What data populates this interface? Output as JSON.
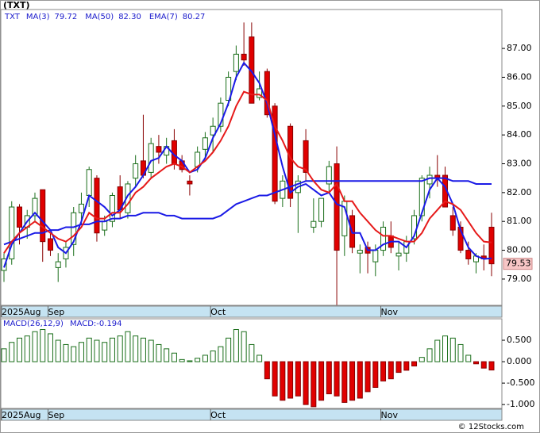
{
  "chart_data": [
    {
      "type": "candlestick",
      "title": "(TXT)",
      "symbol": "TXT",
      "categories": [
        "2025Aug",
        null,
        null,
        null,
        null,
        null,
        "Sep",
        null,
        null,
        null,
        null,
        null,
        null,
        null,
        null,
        null,
        null,
        null,
        null,
        null,
        null,
        null,
        null,
        null,
        null,
        null,
        null,
        "Oct",
        null,
        null,
        null,
        null,
        null,
        null,
        null,
        null,
        null,
        null,
        null,
        null,
        null,
        null,
        null,
        null,
        null,
        null,
        null,
        null,
        null,
        "Nov",
        null,
        null,
        null,
        null,
        null,
        null,
        null,
        null,
        null,
        null,
        null,
        null,
        null,
        null
      ],
      "open": [
        79.3,
        79.7,
        81.5,
        80.8,
        81.2,
        82.1,
        80.4,
        79.4,
        79.7,
        80.2,
        81.3,
        81.9,
        82.5,
        80.7,
        81.0,
        82.2,
        81.3,
        82.5,
        83.1,
        82.7,
        83.6,
        83.3,
        83.8,
        83.1,
        82.4,
        82.9,
        83.5,
        84.0,
        84.3,
        85.2,
        86.2,
        86.8,
        87.4,
        85.3,
        86.2,
        85.0,
        81.8,
        84.3,
        82.0,
        83.8,
        80.8,
        81.0,
        82.3,
        83.0,
        80.5,
        81.2,
        79.9,
        80.1,
        79.6,
        80.0,
        80.5,
        79.8,
        79.9,
        80.4,
        81.2,
        82.3,
        82.6,
        82.6,
        81.2,
        80.8,
        80.0,
        79.6,
        79.8,
        80.8
      ],
      "high": [
        79.9,
        81.7,
        81.6,
        81.4,
        82.0,
        82.1,
        80.6,
        79.9,
        80.3,
        81.5,
        82.0,
        82.9,
        82.6,
        81.2,
        82.0,
        82.6,
        82.4,
        83.3,
        84.7,
        83.9,
        84.0,
        83.9,
        84.2,
        83.3,
        82.6,
        83.6,
        84.1,
        84.6,
        85.3,
        86.2,
        87.1,
        87.9,
        87.9,
        86.2,
        86.3,
        85.1,
        82.6,
        84.4,
        82.6,
        84.2,
        81.8,
        81.8,
        83.1,
        83.6,
        81.9,
        81.4,
        80.2,
        80.3,
        80.2,
        81.0,
        81.0,
        80.3,
        80.5,
        81.4,
        82.6,
        82.9,
        83.3,
        82.9,
        81.5,
        81.0,
        80.3,
        79.9,
        80.2,
        81.3
      ],
      "low": [
        78.9,
        79.5,
        80.2,
        80.4,
        81.0,
        79.6,
        79.8,
        78.9,
        79.4,
        79.8,
        80.9,
        81.5,
        80.3,
        80.5,
        80.8,
        81.1,
        81.1,
        82.2,
        82.5,
        82.5,
        83.0,
        83.0,
        82.8,
        82.7,
        81.9,
        82.7,
        83.2,
        83.4,
        84.1,
        85.0,
        85.9,
        86.4,
        85.1,
        85.2,
        84.6,
        81.6,
        81.5,
        81.5,
        80.6,
        82.4,
        80.6,
        80.8,
        82.0,
        78.1,
        79.8,
        79.9,
        79.2,
        79.2,
        79.1,
        79.8,
        79.9,
        79.3,
        79.6,
        80.2,
        81.0,
        81.8,
        82.2,
        81.6,
        80.5,
        79.9,
        79.5,
        79.2,
        79.3,
        79.1
      ],
      "close": [
        79.7,
        81.5,
        80.8,
        81.2,
        81.8,
        80.3,
        80.0,
        79.6,
        80.1,
        81.3,
        81.6,
        82.8,
        80.6,
        81.0,
        81.9,
        81.4,
        82.3,
        83.0,
        82.6,
        83.7,
        83.4,
        83.6,
        83.0,
        82.8,
        82.3,
        83.4,
        83.9,
        84.3,
        85.1,
        86.0,
        86.8,
        86.6,
        85.1,
        85.6,
        84.7,
        81.7,
        82.4,
        81.8,
        82.4,
        82.7,
        81.0,
        81.8,
        82.9,
        80.0,
        81.7,
        80.1,
        80.0,
        79.9,
        80.0,
        80.8,
        80.1,
        79.9,
        80.3,
        81.2,
        82.5,
        82.6,
        82.5,
        81.5,
        80.7,
        80.0,
        79.7,
        79.8,
        79.7,
        79.53
      ],
      "series": [
        {
          "name": "MA(3)",
          "legend_value": "79.72",
          "color": "#1a1ae6",
          "values": [
            79.4,
            80.2,
            80.6,
            81.0,
            81.3,
            81.0,
            80.7,
            80.1,
            79.9,
            80.3,
            81.0,
            81.9,
            81.7,
            81.5,
            81.2,
            81.4,
            81.9,
            82.2,
            82.6,
            83.1,
            83.2,
            83.6,
            83.3,
            83.1,
            82.7,
            82.8,
            83.2,
            83.9,
            84.4,
            85.1,
            86.0,
            86.5,
            86.2,
            85.8,
            85.1,
            84.0,
            82.9,
            82.0,
            82.2,
            82.3,
            82.1,
            81.9,
            82.0,
            81.6,
            81.5,
            80.6,
            80.6,
            80.0,
            80.0,
            80.2,
            80.3,
            80.3,
            80.1,
            80.5,
            81.3,
            82.1,
            82.5,
            82.2,
            81.6,
            80.7,
            80.1,
            79.8,
            79.7,
            79.72
          ]
        },
        {
          "name": "MA(50)",
          "legend_value": "82.30",
          "color": "#1a1ae6",
          "values": [
            80.2,
            80.3,
            80.4,
            80.5,
            80.6,
            80.6,
            80.7,
            80.7,
            80.8,
            80.8,
            80.9,
            80.9,
            81.0,
            81.0,
            81.1,
            81.1,
            81.2,
            81.2,
            81.3,
            81.3,
            81.3,
            81.2,
            81.2,
            81.1,
            81.1,
            81.1,
            81.1,
            81.1,
            81.2,
            81.4,
            81.6,
            81.7,
            81.8,
            81.9,
            81.9,
            82.0,
            82.1,
            82.2,
            82.3,
            82.4,
            82.4,
            82.4,
            82.4,
            82.4,
            82.4,
            82.4,
            82.4,
            82.4,
            82.4,
            82.4,
            82.4,
            82.4,
            82.4,
            82.4,
            82.4,
            82.5,
            82.5,
            82.5,
            82.4,
            82.4,
            82.4,
            82.3,
            82.3,
            82.3
          ]
        },
        {
          "name": "EMA(7)",
          "legend_value": "80.27",
          "color": "#e61a1a",
          "values": [
            79.9,
            80.3,
            80.6,
            80.8,
            81.0,
            80.8,
            80.6,
            80.4,
            80.3,
            80.5,
            80.8,
            81.3,
            81.1,
            81.1,
            81.3,
            81.3,
            81.6,
            82.0,
            82.2,
            82.5,
            82.7,
            82.9,
            83.0,
            82.9,
            82.7,
            82.9,
            83.1,
            83.4,
            83.8,
            84.3,
            85.0,
            85.5,
            85.4,
            85.4,
            85.2,
            84.3,
            83.8,
            83.2,
            82.9,
            82.8,
            82.4,
            82.1,
            82.0,
            82.3,
            81.7,
            81.7,
            81.3,
            81.0,
            80.7,
            80.5,
            80.5,
            80.4,
            80.3,
            80.3,
            80.6,
            81.1,
            81.4,
            81.7,
            81.6,
            81.4,
            81.0,
            80.6,
            80.3,
            80.27
          ]
        }
      ],
      "ylim": [
        78.09,
        88.35
      ],
      "yticks": [
        {
          "value": 79,
          "label": "79.00"
        },
        {
          "value": 80,
          "label": "80.00"
        },
        {
          "value": 81,
          "label": "81.00"
        },
        {
          "value": 82,
          "label": "82.00"
        },
        {
          "value": 83,
          "label": "83.00"
        },
        {
          "value": 84,
          "label": "84.00"
        },
        {
          "value": 85,
          "label": "85.00"
        },
        {
          "value": 86,
          "label": "86.00"
        },
        {
          "value": 87,
          "label": "87.00"
        }
      ]
    },
    {
      "type": "bar",
      "title": "MACD(26,12,9)",
      "macd_label": "MACD:-0.194",
      "categories": [
        "2025Aug",
        null,
        null,
        null,
        null,
        null,
        "Sep",
        null,
        null,
        null,
        null,
        null,
        null,
        null,
        null,
        null,
        null,
        null,
        null,
        null,
        null,
        null,
        null,
        null,
        null,
        null,
        null,
        "Oct",
        null,
        null,
        null,
        null,
        null,
        null,
        null,
        null,
        null,
        null,
        null,
        null,
        null,
        null,
        null,
        null,
        null,
        null,
        null,
        null,
        null,
        "Nov",
        null,
        null,
        null,
        null,
        null,
        null,
        null,
        null,
        null,
        null,
        null,
        null,
        null,
        null
      ],
      "values": [
        0.3,
        0.45,
        0.55,
        0.6,
        0.7,
        0.75,
        0.65,
        0.5,
        0.4,
        0.35,
        0.45,
        0.55,
        0.5,
        0.45,
        0.55,
        0.6,
        0.7,
        0.6,
        0.55,
        0.5,
        0.4,
        0.3,
        0.2,
        0.05,
        0.02,
        0.08,
        0.15,
        0.25,
        0.35,
        0.55,
        0.75,
        0.7,
        0.4,
        0.15,
        -0.4,
        -0.8,
        -0.9,
        -0.85,
        -0.8,
        -1.0,
        -1.05,
        -0.9,
        -0.75,
        -0.8,
        -0.95,
        -0.9,
        -0.85,
        -0.7,
        -0.6,
        -0.45,
        -0.4,
        -0.25,
        -0.2,
        -0.1,
        0.1,
        0.3,
        0.5,
        0.6,
        0.55,
        0.4,
        0.15,
        -0.05,
        -0.15,
        -0.194
      ],
      "ylim": [
        -1.09,
        1.0
      ],
      "yticks": [
        {
          "value": 0.5,
          "label": "0.500"
        },
        {
          "value": 0,
          "label": "0.000"
        },
        {
          "value": -0.5,
          "label": "-0.500"
        },
        {
          "value": -1,
          "label": "-1.000"
        }
      ]
    }
  ],
  "source": "© 12Stocks.com"
}
